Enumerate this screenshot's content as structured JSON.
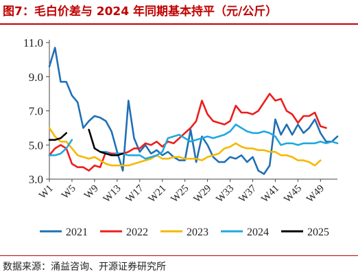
{
  "header": {
    "title": "图7：毛白价差与 2024 年同期基本持平（元/公斤）"
  },
  "footer": {
    "source": "数据来源：涌益咨询、开源证券研究所"
  },
  "chart_data": {
    "type": "line",
    "title": "图7：毛白价差与 2024 年同期基本持平（元/公斤）",
    "xlabel": "",
    "ylabel": "",
    "ylim": [
      3.0,
      11.0
    ],
    "yticks": [
      "3.0",
      "5.0",
      "7.0",
      "9.0",
      "11.0"
    ],
    "xticks": [
      "W1",
      "W5",
      "W9",
      "W13",
      "W17",
      "W21",
      "W25",
      "W29",
      "W33",
      "W37",
      "W41",
      "W45",
      "W49"
    ],
    "xtick_weeks": [
      1,
      5,
      9,
      13,
      17,
      21,
      25,
      29,
      33,
      37,
      41,
      45,
      49
    ],
    "x_range": [
      1,
      52
    ],
    "grid": false,
    "legend_position": "bottom",
    "colors": {
      "2021": "#1f6fb5",
      "2022": "#ee1c1c",
      "2023": "#f5b800",
      "2024": "#1ea8e0",
      "2025": "#000000"
    },
    "series": [
      {
        "name": "2021",
        "values": [
          9.6,
          10.7,
          8.7,
          8.7,
          7.9,
          7.5,
          6.0,
          6.4,
          6.7,
          6.6,
          6.4,
          5.8,
          4.6,
          3.5,
          7.6,
          5.4,
          4.6,
          5.0,
          4.5,
          4.7,
          4.4,
          4.6,
          4.3,
          4.1,
          4.1,
          5.9,
          4.0,
          5.5,
          5.0,
          4.3,
          4.0,
          4.0,
          4.3,
          4.2,
          4.4,
          4.0,
          4.3,
          3.5,
          3.3,
          3.8,
          6.5,
          5.6,
          6.2,
          5.6,
          6.2,
          5.7,
          6.0,
          6.5,
          5.7,
          5.2,
          5.2,
          5.5
        ]
      },
      {
        "name": "2022",
        "values": [
          4.4,
          4.8,
          5.0,
          4.8,
          3.9,
          3.7,
          3.7,
          3.5,
          3.8,
          3.7,
          4.6,
          4.5,
          4.5,
          4.5,
          4.6,
          4.8,
          4.8,
          5.1,
          5.0,
          5.2,
          4.9,
          5.2,
          5.1,
          5.4,
          5.7,
          6.0,
          6.4,
          7.6,
          6.8,
          6.4,
          6.3,
          6.2,
          6.4,
          7.3,
          6.9,
          6.9,
          6.8,
          7.0,
          7.5,
          8.0,
          7.6,
          7.7,
          7.0,
          6.8,
          6.3,
          6.7,
          6.7,
          6.9,
          6.1,
          6.0
        ]
      },
      {
        "name": "2023",
        "values": [
          6.0,
          5.5,
          5.2,
          5.2,
          4.8,
          4.4,
          4.3,
          4.2,
          4.3,
          4.1,
          3.9,
          3.8,
          3.8,
          3.8,
          3.8,
          3.9,
          4.0,
          4.1,
          4.2,
          4.4,
          4.2,
          4.2,
          4.3,
          4.3,
          4.2,
          4.2,
          4.2,
          4.1,
          4.3,
          4.4,
          4.5,
          4.8,
          4.9,
          5.1,
          4.9,
          4.8,
          4.8,
          4.7,
          4.7,
          4.6,
          4.6,
          4.4,
          4.4,
          4.3,
          4.1,
          4.1,
          4.0,
          3.8,
          4.1
        ]
      },
      {
        "name": "2024",
        "values": [
          4.4,
          4.4,
          4.5,
          4.8,
          5.3,
          null,
          null,
          null,
          null,
          4.6,
          4.6,
          4.4,
          4.5,
          4.5,
          4.4,
          4.4,
          4.4,
          4.2,
          4.3,
          4.4,
          4.6,
          5.4,
          5.5,
          5.6,
          5.4,
          5.2,
          5.3,
          5.4,
          5.5,
          5.4,
          5.5,
          5.6,
          5.8,
          6.2,
          6.0,
          5.8,
          5.7,
          5.7,
          5.8,
          5.7,
          5.5,
          5.0,
          5.1,
          5.1,
          5.0,
          5.1,
          5.1,
          5.1,
          5.2,
          5.1,
          5.2,
          5.1
        ]
      },
      {
        "name": "2025",
        "values": [
          5.3,
          5.3,
          5.4,
          5.7,
          null,
          null,
          null,
          5.9,
          4.8,
          4.6,
          4.5,
          4.4,
          4.4,
          4.5
        ]
      }
    ]
  }
}
